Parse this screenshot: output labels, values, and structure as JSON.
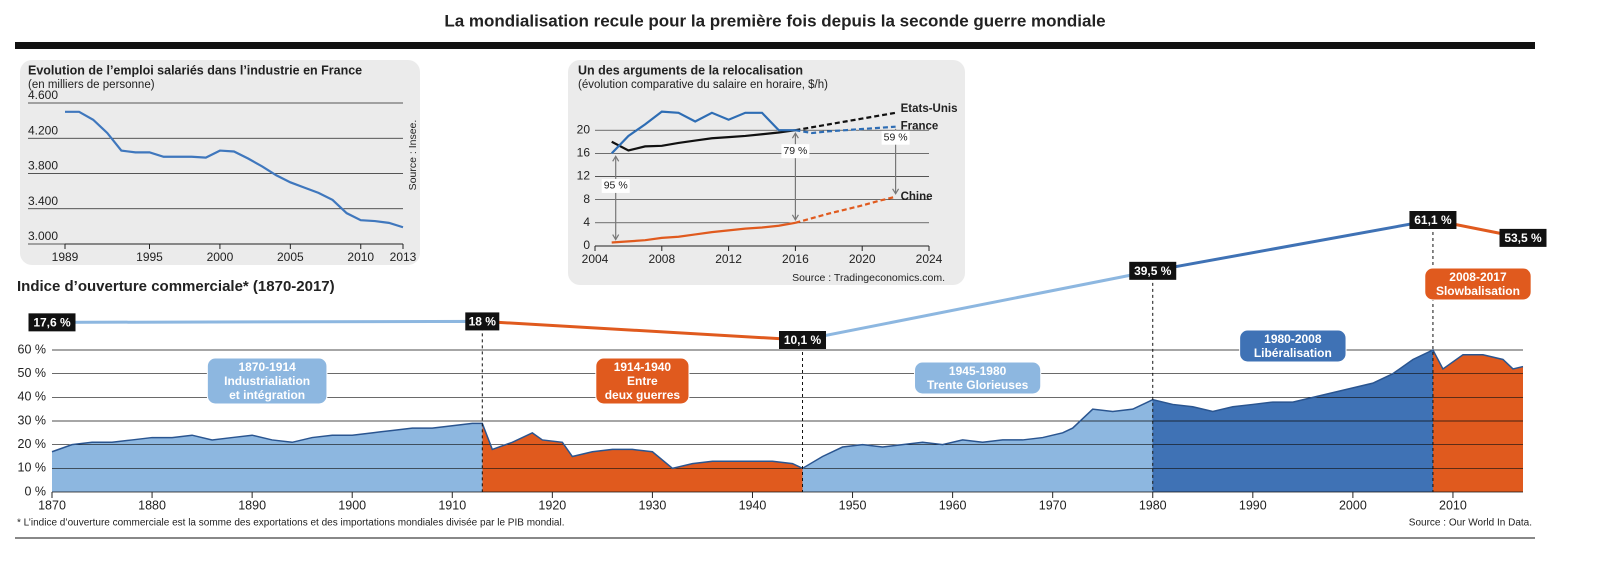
{
  "header": {
    "title": "La mondialisation recule pour la première fois depuis la seconde guerre mondiale"
  },
  "chart_data": [
    {
      "type": "line",
      "title": "Evolution de l’emploi salariés dans l’industrie en France",
      "subtitle": "(en milliers de personne)",
      "source": "Source : Insee.",
      "color": "#3f77bd",
      "x": [
        1989,
        1990,
        1991,
        1992,
        1993,
        1994,
        1995,
        1996,
        1997,
        1998,
        1999,
        2000,
        2001,
        2002,
        2003,
        2004,
        2005,
        2006,
        2007,
        2008,
        2009,
        2010,
        2011,
        2012,
        2013
      ],
      "values": [
        4500,
        4500,
        4410,
        4260,
        4060,
        4040,
        4040,
        3990,
        3990,
        3990,
        3980,
        4060,
        4050,
        3970,
        3880,
        3780,
        3700,
        3640,
        3580,
        3500,
        3350,
        3270,
        3260,
        3240,
        3190
      ],
      "xlim": [
        1989,
        2013
      ],
      "xticks": [
        1989,
        1995,
        2000,
        2005,
        2010,
        2013
      ],
      "ylim": [
        3000,
        4600
      ],
      "yticks": [
        {
          "value": 3000,
          "label": "3.000"
        },
        {
          "value": 3400,
          "label": "3.400"
        },
        {
          "value": 3800,
          "label": "3.800"
        },
        {
          "value": 4200,
          "label": "4.200"
        },
        {
          "value": 4600,
          "label": "4.600"
        }
      ],
      "grid": true
    },
    {
      "type": "line",
      "title": "Un des arguments de la relocalisation",
      "subtitle": "(évolution comparative du salaire en horaire, $/h)",
      "source": "Source : Tradingeconomics.com.",
      "x": [
        2005,
        2006,
        2007,
        2008,
        2009,
        2010,
        2011,
        2012,
        2013,
        2014,
        2015,
        2016,
        2017,
        2018,
        2019,
        2020,
        2021,
        2022
      ],
      "series": [
        {
          "name": "Etats-Unis",
          "color": "#111111",
          "values": [
            18,
            16.5,
            17.2,
            17.3,
            17.8,
            18.2,
            18.6,
            18.8,
            19,
            19.3,
            19.6,
            20,
            null,
            null,
            null,
            null,
            null,
            null
          ],
          "projection": [
            null,
            null,
            null,
            null,
            null,
            null,
            null,
            null,
            null,
            null,
            null,
            20,
            20.5,
            21,
            21.5,
            22,
            22.5,
            23
          ]
        },
        {
          "name": "France",
          "color": "#2e6db4",
          "values": [
            16,
            19,
            21,
            23.2,
            23,
            21.5,
            23,
            21.8,
            23,
            23,
            20,
            20,
            null,
            null,
            null,
            null,
            null,
            null
          ],
          "projection": [
            null,
            null,
            null,
            null,
            null,
            null,
            null,
            null,
            null,
            null,
            null,
            20,
            19.5,
            19.8,
            20,
            20.2,
            20.4,
            20.6
          ]
        },
        {
          "name": "Chine",
          "color": "#e05a1e",
          "values": [
            0.6,
            0.8,
            1,
            1.4,
            1.6,
            2,
            2.4,
            2.7,
            3,
            3.2,
            3.5,
            4,
            null,
            null,
            null,
            null,
            null,
            null
          ],
          "projection": [
            null,
            null,
            null,
            null,
            null,
            null,
            null,
            null,
            null,
            null,
            null,
            4,
            4.8,
            5.6,
            6.3,
            7,
            7.8,
            8.5
          ]
        }
      ],
      "annotations": [
        {
          "text": "95 %",
          "x": 2005
        },
        {
          "text": "79 %",
          "x": 2016
        },
        {
          "text": "59 %",
          "x": 2022
        }
      ],
      "xlim": [
        2004,
        2024
      ],
      "xticks": [
        2004,
        2008,
        2012,
        2016,
        2020,
        2024
      ],
      "ylim": [
        0,
        24
      ],
      "yticks": [
        0,
        4,
        8,
        12,
        16,
        20
      ],
      "grid": true
    },
    {
      "type": "area",
      "title": "Indice d’ouverture commerciale* (1870-2017)",
      "footnote": "* L’indice d’ouverture commerciale est la somme des exportations et des importations mondiales divisée par le PIB mondial.",
      "source": "Source : Our World In Data.",
      "line_color": "#2a5590",
      "x": [
        1870,
        1872,
        1874,
        1876,
        1878,
        1880,
        1882,
        1884,
        1886,
        1888,
        1890,
        1892,
        1894,
        1896,
        1898,
        1900,
        1902,
        1904,
        1906,
        1908,
        1910,
        1912,
        1913,
        1914,
        1916,
        1918,
        1919,
        1921,
        1922,
        1924,
        1926,
        1928,
        1930,
        1932,
        1934,
        1936,
        1938,
        1940,
        1942,
        1944,
        1945,
        1947,
        1949,
        1951,
        1953,
        1955,
        1957,
        1959,
        1961,
        1963,
        1965,
        1967,
        1969,
        1971,
        1972,
        1974,
        1976,
        1978,
        1980,
        1982,
        1984,
        1986,
        1988,
        1990,
        1992,
        1994,
        1996,
        1998,
        2000,
        2002,
        2004,
        2006,
        2008,
        2009,
        2011,
        2013,
        2015,
        2016,
        2017
      ],
      "values": [
        17,
        20,
        21,
        21,
        22,
        23,
        23,
        24,
        22,
        23,
        24,
        22,
        21,
        23,
        24,
        24,
        25,
        26,
        27,
        27,
        28,
        29,
        29,
        18,
        21,
        25,
        22,
        21,
        15,
        17,
        18,
        18,
        17,
        10,
        12,
        13,
        13,
        13,
        13,
        12,
        10,
        15,
        19,
        20,
        19,
        20,
        21,
        20,
        22,
        21,
        22,
        22,
        23,
        25,
        27,
        35,
        34,
        35,
        39,
        37,
        36,
        34,
        36,
        37,
        38,
        38,
        40,
        42,
        44,
        46,
        50,
        56,
        60,
        52,
        58,
        58,
        56,
        52,
        53
      ],
      "periods": [
        {
          "start": 1870,
          "end": 1913,
          "color": "#8db7e0",
          "title": "1870-1914",
          "text": [
            "Industrialiation",
            "et intégration"
          ]
        },
        {
          "start": 1913,
          "end": 1945,
          "color": "#e05a1e",
          "title": "1914-1940",
          "text": [
            "Entre",
            "deux guerres"
          ]
        },
        {
          "start": 1945,
          "end": 1980,
          "color": "#8db7e0",
          "title": "1945-1980",
          "text": [
            "Trente Glorieuses"
          ]
        },
        {
          "start": 1980,
          "end": 2008,
          "color": "#3f72b5",
          "title": "1980-2008",
          "text": [
            "Libéralisation"
          ]
        },
        {
          "start": 2008,
          "end": 2017,
          "color": "#e05a1e",
          "title": "2008-2017",
          "text": [
            "Slowbalisation"
          ]
        }
      ],
      "trend": {
        "x": [
          1870,
          1913,
          1945,
          1980,
          2008,
          2017
        ],
        "values": [
          17.6,
          18,
          10.1,
          39.5,
          61.1,
          53.5
        ],
        "value_labels": [
          "17,6 %",
          "18 %",
          "10,1 %",
          "39,5 %",
          "61,1 %",
          "53,5 %"
        ]
      },
      "xlim": [
        1870,
        2017
      ],
      "xticks": [
        1870,
        1880,
        1890,
        1900,
        1910,
        1920,
        1930,
        1940,
        1950,
        1960,
        1970,
        1980,
        1990,
        2000,
        2010
      ],
      "ylim": [
        0,
        60
      ],
      "yticks": [
        {
          "value": 0,
          "label": "0 %"
        },
        {
          "value": 10,
          "label": "10 %"
        },
        {
          "value": 20,
          "label": "20 %"
        },
        {
          "value": 30,
          "label": "30 %"
        },
        {
          "value": 40,
          "label": "40 %"
        },
        {
          "value": 50,
          "label": "50 %"
        },
        {
          "value": 60,
          "label": "60 %"
        }
      ],
      "grid": true
    }
  ]
}
